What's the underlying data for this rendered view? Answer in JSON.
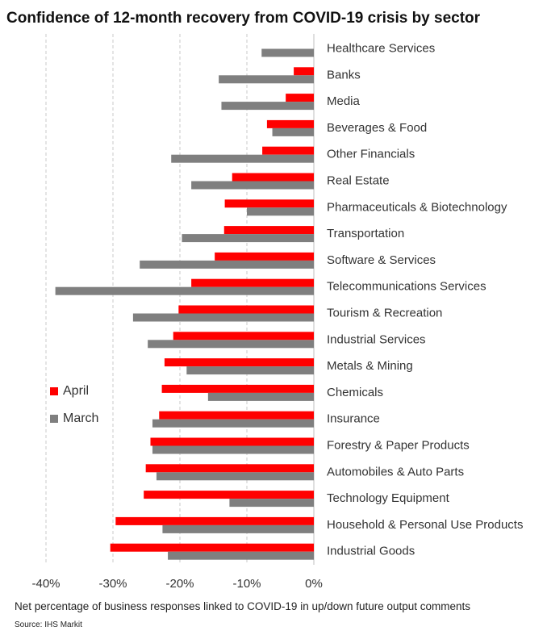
{
  "title": "Confidence of 12-month recovery from COVID-19 crisis by sector",
  "subtitle": "Net percentage of business responses linked to COVID-19 in up/down future output comments",
  "source": "Source: IHS Markit",
  "colors": {
    "april": "#ff0000",
    "march": "#7f7f7f"
  },
  "legend": [
    {
      "label": "April",
      "key": "april"
    },
    {
      "label": "March",
      "key": "march"
    }
  ],
  "chart_data": {
    "type": "bar",
    "orientation": "horizontal",
    "categories": [
      "Healthcare Services",
      "Banks",
      "Media",
      "Beverages & Food",
      "Other Financials",
      "Real Estate",
      "Pharmaceuticals & Biotechnology",
      "Transportation",
      "Software & Services",
      "Telecommunications Services",
      "Tourism & Recreation",
      "Industrial Services",
      "Metals & Mining",
      "Chemicals",
      "Insurance",
      "Forestry & Paper Products",
      "Automobiles & Auto Parts",
      "Technology Equipment",
      "Household & Personal Use Products",
      "Industrial Goods"
    ],
    "series": [
      {
        "name": "April",
        "key": "april",
        "values": [
          0,
          -3,
          -4.2,
          -7,
          -7.7,
          -12.2,
          -13.3,
          -13.4,
          -14.8,
          -18.3,
          -20.2,
          -21,
          -22.3,
          -22.7,
          -23.1,
          -24.4,
          -25.1,
          -25.4,
          -29.6,
          -30.4
        ]
      },
      {
        "name": "March",
        "key": "march",
        "values": [
          -7.8,
          -14.2,
          -13.8,
          -6.2,
          -21.3,
          -18.3,
          -10,
          -19.7,
          -26,
          -38.6,
          -27,
          -24.8,
          -19,
          -15.8,
          -24.1,
          -24.1,
          -23.5,
          -12.6,
          -22.6,
          -21.8
        ]
      }
    ],
    "xlim": [
      -40,
      0
    ],
    "xticks": [
      "-40%",
      "-30%",
      "-20%",
      "-10%",
      "0%"
    ],
    "xtick_values": [
      -40,
      -30,
      -20,
      -10,
      0
    ],
    "grid": "vertical-dashed"
  }
}
